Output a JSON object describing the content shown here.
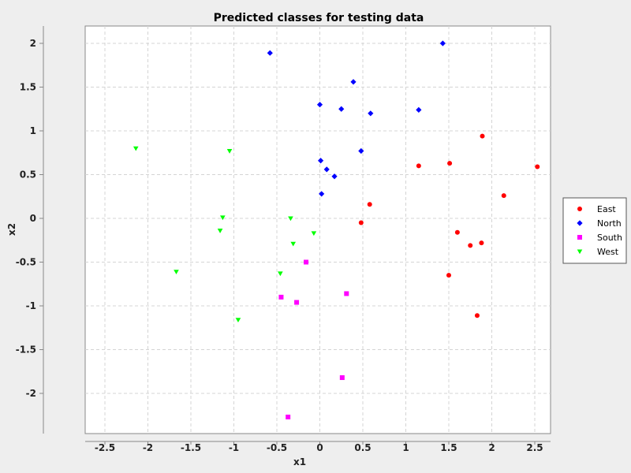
{
  "chart_data": {
    "type": "scatter",
    "title": "Predicted classes for testing data",
    "xlabel": "x1",
    "ylabel": "x2",
    "xlim": [
      -2.5,
      2.5
    ],
    "ylim": [
      -2.5,
      2.2
    ],
    "x_ticks": [
      -2.5,
      -2,
      -1.5,
      -1,
      -0.5,
      0,
      0.5,
      1,
      1.5,
      2,
      2.5
    ],
    "y_ticks": [
      -2,
      -1.5,
      -1,
      -0.5,
      0,
      0.5,
      1,
      1.5,
      2
    ],
    "x_tick_labels": [
      "-2.5",
      "-2",
      "-1.5",
      "-1",
      "-0.5",
      "0",
      "0.5",
      "1",
      "1.5",
      "2",
      "2.5"
    ],
    "y_tick_labels": [
      "-2",
      "-1.5",
      "-1",
      "-0.5",
      "0",
      "0.5",
      "1",
      "1.5",
      "2"
    ],
    "grid": true,
    "legend_position": "right",
    "series": [
      {
        "name": "East",
        "color": "#ff0000",
        "marker": "circle",
        "points": [
          [
            1.89,
            0.94
          ],
          [
            1.15,
            0.6
          ],
          [
            1.51,
            0.63
          ],
          [
            2.14,
            0.26
          ],
          [
            2.53,
            0.59
          ],
          [
            0.58,
            0.16
          ],
          [
            0.48,
            -0.05
          ],
          [
            1.6,
            -0.16
          ],
          [
            1.75,
            -0.31
          ],
          [
            1.88,
            -0.28
          ],
          [
            1.5,
            -0.65
          ],
          [
            1.83,
            -1.11
          ]
        ]
      },
      {
        "name": "North",
        "color": "#0000ff",
        "marker": "diamond",
        "points": [
          [
            -0.58,
            1.89
          ],
          [
            1.43,
            2.0
          ],
          [
            0.39,
            1.56
          ],
          [
            0.0,
            1.3
          ],
          [
            0.25,
            1.25
          ],
          [
            0.59,
            1.2
          ],
          [
            1.15,
            1.24
          ],
          [
            0.48,
            0.77
          ],
          [
            0.01,
            0.66
          ],
          [
            0.08,
            0.56
          ],
          [
            0.17,
            0.48
          ],
          [
            0.02,
            0.28
          ]
        ]
      },
      {
        "name": "South",
        "color": "#ff00ff",
        "marker": "square",
        "points": [
          [
            -0.16,
            -0.5
          ],
          [
            -0.45,
            -0.9
          ],
          [
            -0.27,
            -0.96
          ],
          [
            0.31,
            -0.86
          ],
          [
            0.26,
            -1.82
          ],
          [
            -0.37,
            -2.27
          ]
        ]
      },
      {
        "name": "West",
        "color": "#00ff00",
        "marker": "triangle-down",
        "points": [
          [
            -2.14,
            0.8
          ],
          [
            -1.05,
            0.77
          ],
          [
            -1.13,
            0.01
          ],
          [
            -1.16,
            -0.14
          ],
          [
            -0.34,
            0.0
          ],
          [
            -0.07,
            -0.17
          ],
          [
            -0.31,
            -0.29
          ],
          [
            -1.67,
            -0.61
          ],
          [
            -0.46,
            -0.63
          ],
          [
            -0.95,
            -1.16
          ]
        ]
      }
    ]
  }
}
